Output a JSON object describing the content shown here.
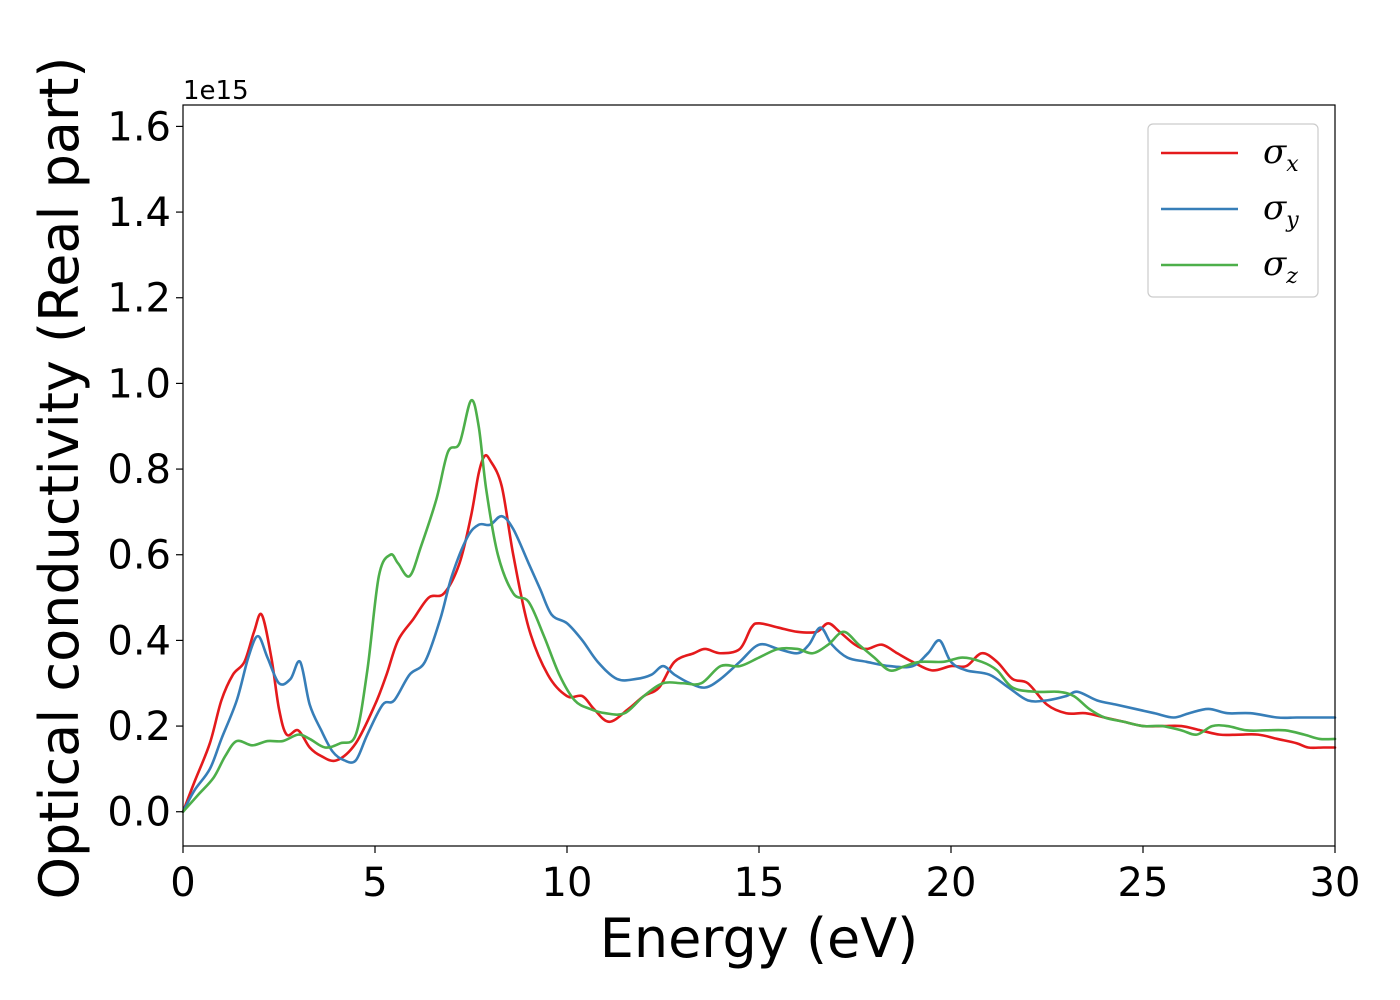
{
  "chart_data": {
    "type": "line",
    "xlabel": "Energy (eV)",
    "ylabel": "Optical conductivity (Real part)",
    "offset_text": "1e15",
    "xlim": [
      0,
      30
    ],
    "ylim": [
      -0.08,
      1.65
    ],
    "xticks": [
      0,
      5,
      10,
      15,
      20,
      25,
      30
    ],
    "yticks": [
      0.0,
      0.2,
      0.4,
      0.6,
      0.8,
      1.0,
      1.2,
      1.4,
      1.6
    ],
    "xtick_labels": [
      "0",
      "5",
      "10",
      "15",
      "20",
      "25",
      "30"
    ],
    "ytick_labels": [
      "0.0",
      "0.2",
      "0.4",
      "0.6",
      "0.8",
      "1.0",
      "1.2",
      "1.4",
      "1.6"
    ],
    "grid": false,
    "legend_position": "top-right",
    "series": [
      {
        "name": "σx",
        "symbol": "σ",
        "subscript": "x",
        "color": "#e41a1c",
        "points": [
          [
            0,
            0
          ],
          [
            0.3,
            0.07
          ],
          [
            0.7,
            0.16
          ],
          [
            1.0,
            0.26
          ],
          [
            1.3,
            0.32
          ],
          [
            1.6,
            0.35
          ],
          [
            1.85,
            0.42
          ],
          [
            2.05,
            0.46
          ],
          [
            2.3,
            0.36
          ],
          [
            2.5,
            0.24
          ],
          [
            2.7,
            0.18
          ],
          [
            3.0,
            0.19
          ],
          [
            3.3,
            0.15
          ],
          [
            3.6,
            0.13
          ],
          [
            4.0,
            0.12
          ],
          [
            4.5,
            0.16
          ],
          [
            5.0,
            0.25
          ],
          [
            5.3,
            0.32
          ],
          [
            5.6,
            0.4
          ],
          [
            6.0,
            0.45
          ],
          [
            6.4,
            0.5
          ],
          [
            6.8,
            0.51
          ],
          [
            7.2,
            0.58
          ],
          [
            7.5,
            0.69
          ],
          [
            7.7,
            0.79
          ],
          [
            7.85,
            0.83
          ],
          [
            8.0,
            0.82
          ],
          [
            8.3,
            0.76
          ],
          [
            8.6,
            0.6
          ],
          [
            9.0,
            0.43
          ],
          [
            9.5,
            0.32
          ],
          [
            10.0,
            0.27
          ],
          [
            10.4,
            0.27
          ],
          [
            10.7,
            0.24
          ],
          [
            11.1,
            0.21
          ],
          [
            11.6,
            0.24
          ],
          [
            12.0,
            0.27
          ],
          [
            12.4,
            0.29
          ],
          [
            12.8,
            0.35
          ],
          [
            13.3,
            0.37
          ],
          [
            13.6,
            0.38
          ],
          [
            14.0,
            0.37
          ],
          [
            14.5,
            0.38
          ],
          [
            14.8,
            0.43
          ],
          [
            15.0,
            0.44
          ],
          [
            15.5,
            0.43
          ],
          [
            16.0,
            0.42
          ],
          [
            16.5,
            0.42
          ],
          [
            16.8,
            0.44
          ],
          [
            17.1,
            0.42
          ],
          [
            17.5,
            0.39
          ],
          [
            17.8,
            0.38
          ],
          [
            18.2,
            0.39
          ],
          [
            18.6,
            0.37
          ],
          [
            19.0,
            0.35
          ],
          [
            19.5,
            0.33
          ],
          [
            20.0,
            0.34
          ],
          [
            20.4,
            0.34
          ],
          [
            20.8,
            0.37
          ],
          [
            21.2,
            0.35
          ],
          [
            21.6,
            0.31
          ],
          [
            22.0,
            0.3
          ],
          [
            22.5,
            0.25
          ],
          [
            23.0,
            0.23
          ],
          [
            23.5,
            0.23
          ],
          [
            24.0,
            0.22
          ],
          [
            24.5,
            0.21
          ],
          [
            25.0,
            0.2
          ],
          [
            25.5,
            0.2
          ],
          [
            26.0,
            0.2
          ],
          [
            26.5,
            0.19
          ],
          [
            27.0,
            0.18
          ],
          [
            27.5,
            0.18
          ],
          [
            28.0,
            0.18
          ],
          [
            28.5,
            0.17
          ],
          [
            29.0,
            0.16
          ],
          [
            29.3,
            0.15
          ],
          [
            29.7,
            0.15
          ],
          [
            30.0,
            0.15
          ]
        ]
      },
      {
        "name": "σy",
        "symbol": "σ",
        "subscript": "y",
        "color": "#377eb8",
        "points": [
          [
            0,
            0
          ],
          [
            0.3,
            0.05
          ],
          [
            0.7,
            0.1
          ],
          [
            1.0,
            0.17
          ],
          [
            1.4,
            0.26
          ],
          [
            1.7,
            0.36
          ],
          [
            1.95,
            0.41
          ],
          [
            2.2,
            0.36
          ],
          [
            2.5,
            0.3
          ],
          [
            2.8,
            0.31
          ],
          [
            3.05,
            0.35
          ],
          [
            3.3,
            0.25
          ],
          [
            3.6,
            0.19
          ],
          [
            3.9,
            0.14
          ],
          [
            4.2,
            0.12
          ],
          [
            4.5,
            0.12
          ],
          [
            4.8,
            0.18
          ],
          [
            5.2,
            0.25
          ],
          [
            5.5,
            0.26
          ],
          [
            5.9,
            0.32
          ],
          [
            6.3,
            0.35
          ],
          [
            6.7,
            0.45
          ],
          [
            7.0,
            0.55
          ],
          [
            7.4,
            0.64
          ],
          [
            7.7,
            0.67
          ],
          [
            8.0,
            0.67
          ],
          [
            8.3,
            0.69
          ],
          [
            8.6,
            0.66
          ],
          [
            9.0,
            0.58
          ],
          [
            9.3,
            0.52
          ],
          [
            9.6,
            0.46
          ],
          [
            10.0,
            0.44
          ],
          [
            10.4,
            0.4
          ],
          [
            10.8,
            0.35
          ],
          [
            11.3,
            0.31
          ],
          [
            11.8,
            0.31
          ],
          [
            12.2,
            0.32
          ],
          [
            12.5,
            0.34
          ],
          [
            12.8,
            0.32
          ],
          [
            13.2,
            0.3
          ],
          [
            13.6,
            0.29
          ],
          [
            14.0,
            0.31
          ],
          [
            14.5,
            0.35
          ],
          [
            15.0,
            0.39
          ],
          [
            15.5,
            0.38
          ],
          [
            16.0,
            0.37
          ],
          [
            16.3,
            0.39
          ],
          [
            16.6,
            0.43
          ],
          [
            16.9,
            0.39
          ],
          [
            17.3,
            0.36
          ],
          [
            17.8,
            0.35
          ],
          [
            18.4,
            0.34
          ],
          [
            19.0,
            0.34
          ],
          [
            19.4,
            0.37
          ],
          [
            19.7,
            0.4
          ],
          [
            20.0,
            0.35
          ],
          [
            20.4,
            0.33
          ],
          [
            21.0,
            0.32
          ],
          [
            21.5,
            0.29
          ],
          [
            22.0,
            0.26
          ],
          [
            22.5,
            0.26
          ],
          [
            23.0,
            0.27
          ],
          [
            23.3,
            0.28
          ],
          [
            23.8,
            0.26
          ],
          [
            24.3,
            0.25
          ],
          [
            24.8,
            0.24
          ],
          [
            25.3,
            0.23
          ],
          [
            25.8,
            0.22
          ],
          [
            26.2,
            0.23
          ],
          [
            26.7,
            0.24
          ],
          [
            27.2,
            0.23
          ],
          [
            27.8,
            0.23
          ],
          [
            28.5,
            0.22
          ],
          [
            29.0,
            0.22
          ],
          [
            29.5,
            0.22
          ],
          [
            30.0,
            0.22
          ]
        ]
      },
      {
        "name": "σz",
        "symbol": "σ",
        "subscript": "z",
        "color": "#4daf4a",
        "points": [
          [
            0,
            0
          ],
          [
            0.4,
            0.04
          ],
          [
            0.8,
            0.08
          ],
          [
            1.1,
            0.13
          ],
          [
            1.4,
            0.165
          ],
          [
            1.8,
            0.155
          ],
          [
            2.2,
            0.165
          ],
          [
            2.6,
            0.165
          ],
          [
            3.0,
            0.18
          ],
          [
            3.3,
            0.17
          ],
          [
            3.7,
            0.15
          ],
          [
            4.1,
            0.16
          ],
          [
            4.5,
            0.18
          ],
          [
            4.8,
            0.33
          ],
          [
            5.1,
            0.55
          ],
          [
            5.4,
            0.6
          ],
          [
            5.6,
            0.58
          ],
          [
            5.9,
            0.55
          ],
          [
            6.2,
            0.62
          ],
          [
            6.6,
            0.73
          ],
          [
            6.9,
            0.84
          ],
          [
            7.2,
            0.86
          ],
          [
            7.5,
            0.96
          ],
          [
            7.7,
            0.9
          ],
          [
            7.9,
            0.75
          ],
          [
            8.2,
            0.6
          ],
          [
            8.6,
            0.51
          ],
          [
            9.0,
            0.49
          ],
          [
            9.4,
            0.41
          ],
          [
            9.8,
            0.32
          ],
          [
            10.2,
            0.26
          ],
          [
            10.6,
            0.24
          ],
          [
            11.0,
            0.23
          ],
          [
            11.5,
            0.23
          ],
          [
            12.0,
            0.27
          ],
          [
            12.5,
            0.3
          ],
          [
            13.0,
            0.3
          ],
          [
            13.5,
            0.3
          ],
          [
            14.0,
            0.34
          ],
          [
            14.5,
            0.34
          ],
          [
            15.0,
            0.36
          ],
          [
            15.5,
            0.38
          ],
          [
            16.0,
            0.38
          ],
          [
            16.4,
            0.37
          ],
          [
            16.8,
            0.39
          ],
          [
            17.2,
            0.42
          ],
          [
            17.6,
            0.39
          ],
          [
            18.0,
            0.36
          ],
          [
            18.4,
            0.33
          ],
          [
            18.8,
            0.34
          ],
          [
            19.2,
            0.35
          ],
          [
            19.8,
            0.35
          ],
          [
            20.3,
            0.36
          ],
          [
            20.8,
            0.35
          ],
          [
            21.2,
            0.33
          ],
          [
            21.6,
            0.29
          ],
          [
            22.2,
            0.28
          ],
          [
            22.8,
            0.28
          ],
          [
            23.2,
            0.27
          ],
          [
            23.6,
            0.24
          ],
          [
            24.0,
            0.22
          ],
          [
            24.5,
            0.21
          ],
          [
            25.0,
            0.2
          ],
          [
            25.5,
            0.2
          ],
          [
            26.0,
            0.19
          ],
          [
            26.4,
            0.18
          ],
          [
            26.8,
            0.2
          ],
          [
            27.2,
            0.2
          ],
          [
            27.7,
            0.19
          ],
          [
            28.2,
            0.19
          ],
          [
            28.7,
            0.19
          ],
          [
            29.2,
            0.18
          ],
          [
            29.6,
            0.17
          ],
          [
            30.0,
            0.17
          ]
        ]
      }
    ]
  }
}
